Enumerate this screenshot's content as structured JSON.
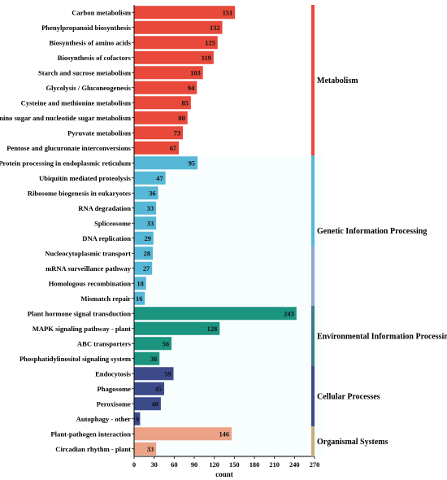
{
  "chart_data": {
    "type": "bar",
    "orientation": "horizontal",
    "xlabel": "count",
    "ylabel": "",
    "xlim": [
      0,
      270
    ],
    "xticks": [
      0,
      30,
      60,
      90,
      120,
      150,
      180,
      210,
      240,
      270
    ],
    "categories": [
      "Carbon metabolism",
      "Phenylpropanoid biosynthesis",
      "Biosynthesis of amino acids",
      "Biosynthesis of cofactors",
      "Starch and sucrose metabolism",
      "Glycolysis / Gluconeogenesis",
      "Cysteine and methionine metabolism",
      "Amino sugar and nucleotide sugar metabolism",
      "Pyruvate metabolism",
      "Pentose and glucuronate interconversions",
      "Protein processing in endoplasmic reticulum",
      "Ubiquitin mediated proteolysis",
      "Ribosome biogenesis in eukaryotes",
      "RNA degradation",
      "Spliceosome",
      "DNA replication",
      "Nucleocytoplasmic transport",
      "mRNA surveillance pathway",
      "Homologous recombination",
      "Mismatch repair",
      "Plant hormone signal transduction",
      "MAPK signaling pathway - plant",
      "ABC transporters",
      "Phosphatidylinositol signaling system",
      "Endocytosis",
      "Phagosome",
      "Peroxisome",
      "Autophagy - other",
      "Plant-pathogen interaction",
      "Circadian rhythm - plant"
    ],
    "values": [
      151,
      132,
      125,
      119,
      103,
      94,
      85,
      80,
      73,
      67,
      95,
      47,
      36,
      33,
      33,
      29,
      28,
      27,
      18,
      16,
      243,
      128,
      56,
      38,
      59,
      45,
      40,
      9,
      146,
      33
    ],
    "value_labels": [
      "151",
      "132",
      "125",
      "119",
      "103",
      "94",
      "85",
      "80",
      "73",
      "67",
      "95",
      "47",
      "36",
      "33",
      "33",
      "29",
      "28",
      "27",
      "18",
      "16",
      "243",
      "128",
      "56",
      "38",
      "59",
      "45",
      "40",
      "9",
      "146",
      "33"
    ],
    "colors": [
      "#e8493a",
      "#e8493a",
      "#e8493a",
      "#e8493a",
      "#e8493a",
      "#e8493a",
      "#e8493a",
      "#e8493a",
      "#e8493a",
      "#e8493a",
      "#56b8d6",
      "#56b8d6",
      "#56b8d6",
      "#56b8d6",
      "#56b8d6",
      "#56b8d6",
      "#56b8d6",
      "#56b8d6",
      "#56b8d6",
      "#56b8d6",
      "#1b9480",
      "#1b9480",
      "#1b9480",
      "#1b9480",
      "#3d4a8a",
      "#3d4a8a",
      "#3d4a8a",
      "#3d4a8a",
      "#eca286",
      "#eca286"
    ],
    "groups": [
      {
        "name": "Metabolism",
        "start": 0,
        "end": 9,
        "color": "#e8493a"
      },
      {
        "name": "Genetic Information Processing",
        "start": 10,
        "end": 19,
        "color": "#56b8d6"
      },
      {
        "name": "Environmental Information Processin",
        "start": 20,
        "end": 23,
        "color": "#1b9480"
      },
      {
        "name": "Cellular Processes",
        "start": 24,
        "end": 27,
        "color": "#3d4a8a"
      },
      {
        "name": "Organismal Systems",
        "start": 28,
        "end": 29,
        "color": "#eca286"
      }
    ],
    "group_bar_colors": [
      "#e8493a",
      "#56b8d6",
      "#8fa8d6",
      "#3d7c8a",
      "#3d4a8a",
      "#c8ad7f"
    ],
    "grid": false,
    "legend": "none"
  }
}
